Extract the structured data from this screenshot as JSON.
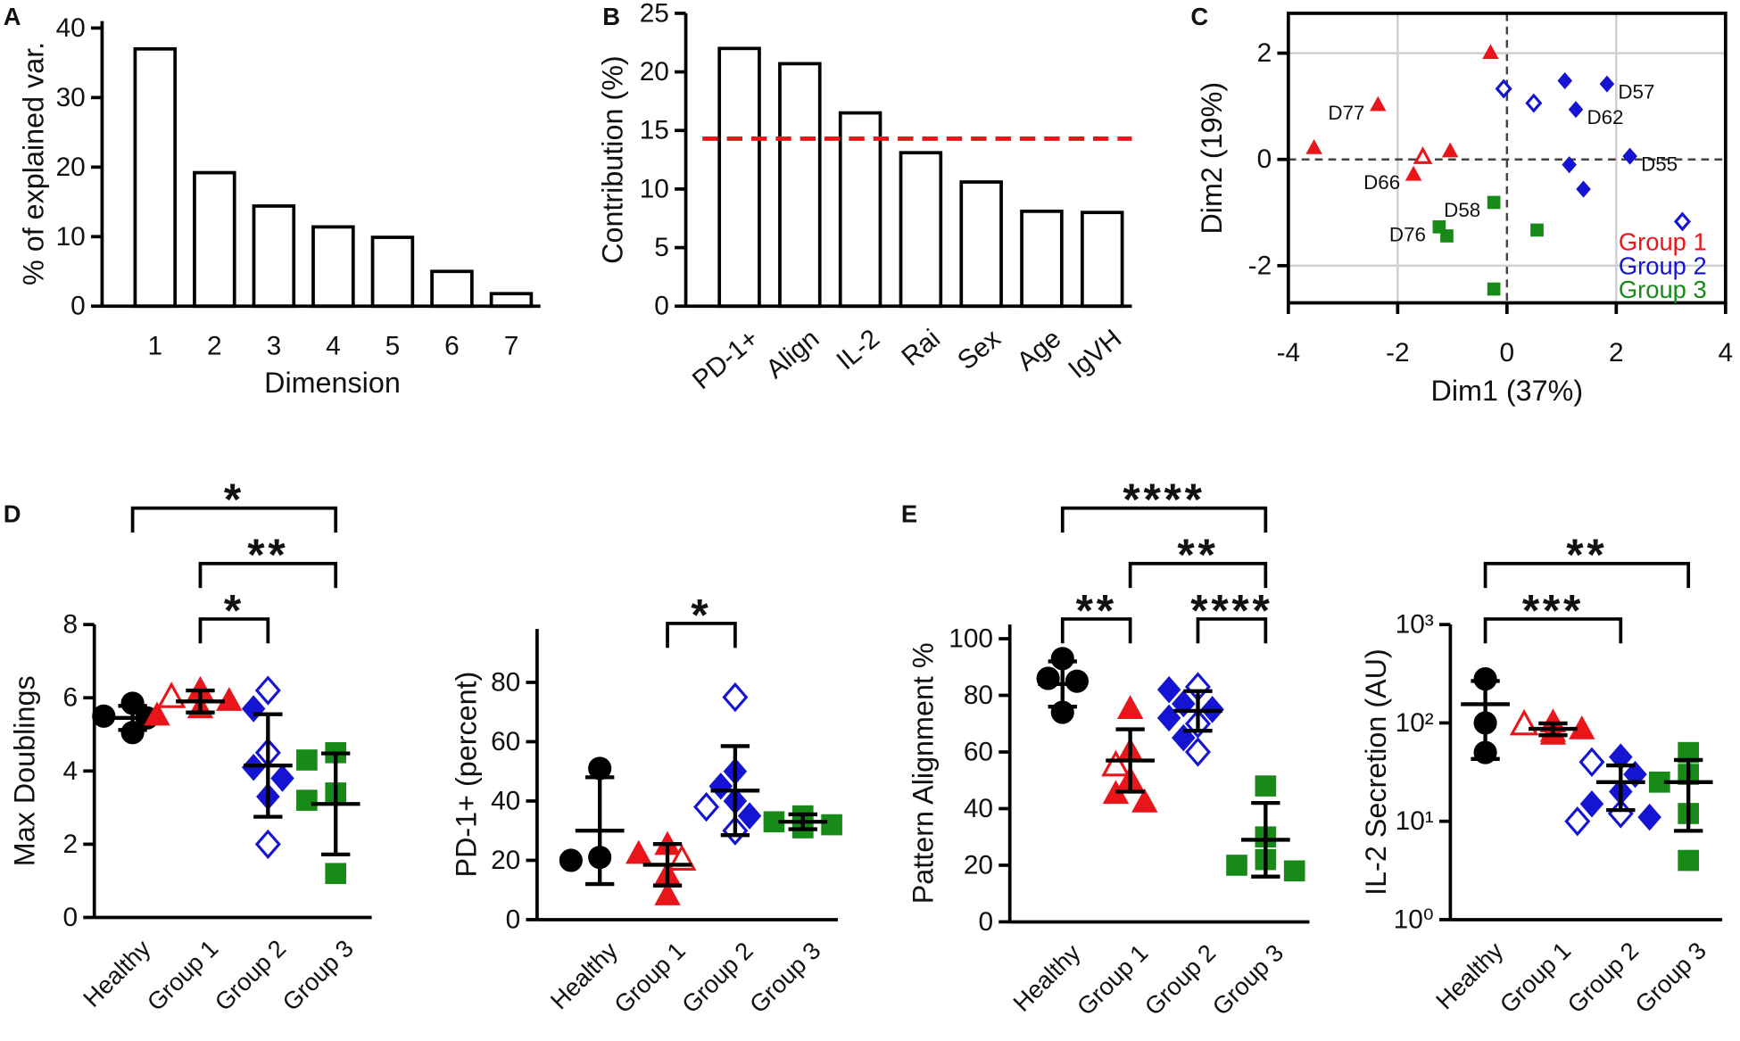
{
  "chart_data": [
    {
      "type": "bar",
      "panel": "A",
      "ylabel": "% of explained var.",
      "xlabel": "Dimension",
      "categories": [
        1,
        2,
        3,
        4,
        5,
        6,
        7
      ],
      "values": [
        37,
        19.2,
        14.4,
        11.4,
        9.9,
        5,
        1.8
      ],
      "color": "#ffffff",
      "edgecolor": "#000000",
      "ylim": [
        0,
        41
      ],
      "yticks": [
        0,
        10,
        20,
        30,
        40
      ]
    },
    {
      "type": "bar",
      "panel": "B",
      "ylabel": "Contribution (%)",
      "categories": [
        "PD-1+",
        "Align",
        "IL-2",
        "Rai",
        "Sex",
        "Age",
        "IgVH"
      ],
      "values": [
        22,
        20.7,
        16.5,
        13.1,
        10.6,
        8.1,
        8.0
      ],
      "color": "#ffffff",
      "edgecolor": "#000000",
      "ylim": [
        0,
        25
      ],
      "yticks": [
        0,
        5,
        10,
        15,
        20,
        25
      ],
      "reference_line": {
        "value": 14.3,
        "color": "#e8161b",
        "style": "dashed"
      }
    },
    {
      "type": "scatter",
      "panel": "C",
      "xlabel": "Dim1 (37%)",
      "ylabel": "Dim2 (19%)",
      "xlim": [
        -4,
        4
      ],
      "ylim": [
        -2.7,
        2.75
      ],
      "xticks": [
        -4,
        -2,
        0,
        2,
        4
      ],
      "yticks": [
        -2,
        0,
        2
      ],
      "grid": true,
      "zero_lines": "dashed",
      "legend": "lower right",
      "series": [
        {
          "name": "Group 1",
          "color": "#e8161b",
          "marker": "triangle",
          "x": [
            -0.3,
            -2.36,
            -3.53,
            -1.04,
            -1.71,
            -1.54
          ],
          "values": [
            2.0,
            1.02,
            0.21,
            0.15,
            -0.29,
            0.04
          ],
          "open": [
            false,
            false,
            false,
            false,
            false,
            true
          ],
          "labels": [
            null,
            "D77",
            null,
            null,
            "D66",
            null
          ]
        },
        {
          "name": "Group 2",
          "color": "#1414d2",
          "marker": "diamond",
          "x": [
            1.06,
            1.83,
            1.26,
            2.25,
            1.14,
            1.4,
            -0.06,
            0.49,
            3.21
          ],
          "values": [
            1.48,
            1.42,
            0.94,
            0.06,
            -0.1,
            -0.56,
            1.33,
            1.06,
            -1.17
          ],
          "open": [
            false,
            false,
            false,
            false,
            false,
            false,
            true,
            true,
            true
          ],
          "labels": [
            null,
            "D57",
            "D62",
            "D55",
            null,
            null,
            null,
            null,
            null
          ]
        },
        {
          "name": "Group 3",
          "color": "#178a17",
          "marker": "square",
          "x": [
            -0.24,
            -1.24,
            -1.1,
            0.55,
            -0.24
          ],
          "values": [
            -0.81,
            -1.27,
            -1.44,
            -1.33,
            -2.44
          ],
          "labels": [
            "D58",
            "D76",
            null,
            null,
            null
          ]
        }
      ]
    },
    {
      "type": "dot",
      "panel": "D",
      "ylabel": "Max Doublings",
      "ylim": [
        0,
        8
      ],
      "yticks": [
        0,
        2,
        4,
        6,
        8
      ],
      "series": [
        {
          "name": "Healthy",
          "color": "#000000",
          "marker": "circle",
          "values": [
            5.85,
            5.5,
            5.45,
            5.05
          ],
          "mean": 5.45,
          "sd": 0.33
        },
        {
          "name": "Group 1",
          "color": "#e8161b",
          "marker": "triangle",
          "values": [
            6.2,
            6.0,
            5.9,
            5.7,
            5.5
          ],
          "open": [
            false,
            true,
            false,
            false,
            false
          ],
          "mean": 5.9,
          "sd": 0.3
        },
        {
          "name": "Group 2",
          "color": "#1414d2",
          "marker": "diamond",
          "values": [
            6.2,
            5.7,
            4.5,
            4.1,
            3.8,
            3.3,
            2.0
          ],
          "open": [
            true,
            false,
            true,
            false,
            false,
            false,
            true
          ],
          "mean": 4.15,
          "sd": 1.4
        },
        {
          "name": "Group 3",
          "color": "#178a17",
          "marker": "square",
          "values": [
            4.5,
            4.3,
            3.4,
            3.2,
            1.2
          ],
          "mean": 3.1,
          "sd": 1.38
        }
      ],
      "brackets": [
        {
          "from": "Group 1",
          "to": "Group 2",
          "label": "*"
        },
        {
          "from": "Group 1",
          "to": "Group 3",
          "label": "**"
        },
        {
          "from": "Healthy",
          "to": "Group 3",
          "label": "*"
        }
      ]
    },
    {
      "type": "dot",
      "ylabel": "PD-1+ (percent)",
      "ylim": [
        0,
        98
      ],
      "yticks": [
        0,
        20,
        40,
        60,
        80
      ],
      "series": [
        {
          "name": "Healthy",
          "color": "#000000",
          "marker": "circle",
          "values": [
            51,
            21,
            20
          ],
          "mean": 30,
          "sd": 18
        },
        {
          "name": "Group 1",
          "color": "#e8161b",
          "marker": "triangle",
          "values": [
            25,
            22,
            20,
            15,
            8
          ],
          "open": [
            false,
            false,
            true,
            false,
            false
          ],
          "mean": 18.5,
          "sd": 7
        },
        {
          "name": "Group 2",
          "color": "#1414d2",
          "marker": "diamond",
          "values": [
            75,
            50,
            45,
            40,
            38,
            35,
            30
          ],
          "open": [
            true,
            false,
            false,
            false,
            true,
            false,
            true
          ],
          "mean": 43.5,
          "sd": 15
        },
        {
          "name": "Group 3",
          "color": "#178a17",
          "marker": "square",
          "values": [
            35,
            33,
            32,
            31,
            31
          ],
          "mean": 33,
          "sd": 2.5
        }
      ],
      "brackets": [
        {
          "from": "Group 1",
          "to": "Group 2",
          "label": "*"
        }
      ]
    },
    {
      "type": "dot",
      "panel": "E",
      "ylabel": "Pattern  Alignment %",
      "ylim": [
        0,
        105
      ],
      "yticks": [
        0,
        20,
        40,
        60,
        80,
        100
      ],
      "series": [
        {
          "name": "Healthy",
          "color": "#000000",
          "marker": "circle",
          "values": [
            93,
            86,
            85,
            74
          ],
          "mean": 84,
          "sd": 8
        },
        {
          "name": "Group 1",
          "color": "#e8161b",
          "marker": "triangle",
          "values": [
            75,
            60,
            55,
            50,
            45,
            42
          ],
          "open": [
            false,
            false,
            true,
            false,
            false,
            false
          ],
          "mean": 57,
          "sd": 11
        },
        {
          "name": "Group 2",
          "color": "#1414d2",
          "marker": "diamond",
          "values": [
            83,
            82,
            77,
            75,
            72,
            70,
            65,
            60
          ],
          "open": [
            true,
            false,
            false,
            false,
            false,
            true,
            false,
            true
          ],
          "mean": 74.5,
          "sd": 7
        },
        {
          "name": "Group 3",
          "color": "#178a17",
          "marker": "square",
          "values": [
            48,
            30,
            22,
            20,
            18
          ],
          "mean": 29,
          "sd": 13
        }
      ],
      "brackets": [
        {
          "from": "Healthy",
          "to": "Group 1",
          "label": "**"
        },
        {
          "from": "Group 2",
          "to": "Group 3",
          "label": "****"
        },
        {
          "from": "Group 1",
          "to": "Group 3",
          "label": "**"
        },
        {
          "from": "Healthy",
          "to": "Group 3",
          "label": "****"
        }
      ]
    },
    {
      "type": "dot",
      "ylabel": "IL-2 Secretion (AU)",
      "log": true,
      "ylim": [
        1,
        1000
      ],
      "yticks": [
        {
          "value": 1,
          "label": "10⁰"
        },
        {
          "value": 10,
          "label": "10¹"
        },
        {
          "value": 100,
          "label": "10²"
        },
        {
          "value": 1000,
          "label": "10³"
        }
      ],
      "series": [
        {
          "name": "Healthy",
          "color": "#000000",
          "marker": "circle",
          "values": [
            280,
            100,
            50
          ],
          "mean": 155,
          "sd": 112
        },
        {
          "name": "Group 1",
          "color": "#e8161b",
          "marker": "triangle",
          "values": [
            100,
            95,
            85,
            80,
            75
          ],
          "open": [
            false,
            true,
            false,
            false,
            false
          ],
          "mean": 87,
          "sd": 12
        },
        {
          "name": "Group 2",
          "color": "#1414d2",
          "marker": "diamond",
          "values": [
            45,
            40,
            30,
            20,
            15,
            12,
            11,
            10
          ],
          "open": [
            false,
            true,
            false,
            false,
            false,
            true,
            false,
            true
          ],
          "mean": 25,
          "sd": 12
        },
        {
          "name": "Group 3",
          "color": "#178a17",
          "marker": "square",
          "values": [
            50,
            30,
            25,
            12,
            4
          ],
          "mean": 25,
          "sd": 17
        }
      ],
      "brackets": [
        {
          "from": "Healthy",
          "to": "Group 2",
          "label": "***"
        },
        {
          "from": "Healthy",
          "to": "Group 3",
          "label": "**"
        }
      ]
    }
  ]
}
